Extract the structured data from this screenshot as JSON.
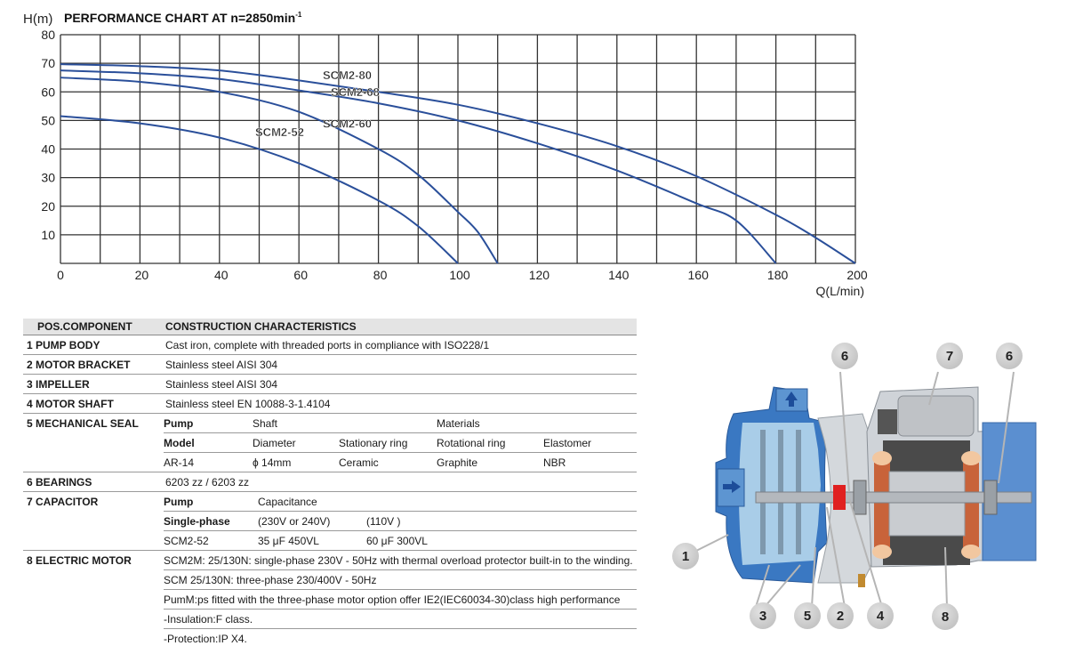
{
  "chart_data": {
    "type": "line",
    "title": "PERFORMANCE CHART AT n=2850min",
    "title_superscript": "-1",
    "xlabel": "Q(L/min)",
    "ylabel": "H(m)",
    "xlim": [
      0,
      200
    ],
    "ylim": [
      0,
      80
    ],
    "x_ticks": [
      0,
      20,
      40,
      60,
      80,
      100,
      120,
      140,
      160,
      180,
      200
    ],
    "y_ticks": [
      10,
      20,
      30,
      40,
      50,
      60,
      70,
      80
    ],
    "grid": {
      "x_step": 10,
      "y_step": 10,
      "on": true
    },
    "line_color": "#2a4f9a",
    "series": [
      {
        "name": "SCM2-80",
        "x": [
          0,
          20,
          40,
          60,
          80,
          100,
          120,
          140,
          160,
          180,
          190,
          200
        ],
        "y": [
          69.7,
          69,
          67.5,
          64,
          60,
          55.5,
          49,
          41,
          30.5,
          17,
          9,
          0
        ],
        "label_pos": [
          66,
          64.5
        ]
      },
      {
        "name": "SCM2-68",
        "x": [
          0,
          20,
          40,
          60,
          80,
          100,
          120,
          140,
          160,
          170,
          180
        ],
        "y": [
          67.5,
          66.5,
          64.5,
          60.5,
          56,
          50,
          42,
          32.5,
          21,
          15,
          0
        ],
        "label_pos": [
          68,
          58.5
        ]
      },
      {
        "name": "SCM2-60",
        "x": [
          0,
          20,
          40,
          60,
          80,
          90,
          100,
          105,
          110
        ],
        "y": [
          65,
          63.5,
          60,
          53,
          40,
          31,
          18,
          11,
          0
        ],
        "label_pos": [
          66,
          47.5
        ]
      },
      {
        "name": "SCM2-52",
        "x": [
          0,
          20,
          40,
          60,
          80,
          90,
          100
        ],
        "y": [
          51.5,
          49,
          44,
          35,
          22,
          13,
          0
        ],
        "label_pos": [
          49,
          44.5
        ]
      }
    ]
  },
  "table": {
    "headers": {
      "component": "POS.COMPONENT",
      "characteristics": "CONSTRUCTION CHARACTERISTICS"
    },
    "rows": {
      "pump_body": {
        "label": "1  PUMP BODY",
        "value": "Cast iron, complete with threaded ports in compliance with ISO228/1"
      },
      "motor_bracket": {
        "label": "2  MOTOR BRACKET",
        "value": "Stainless steel  AISI 304"
      },
      "impeller": {
        "label": "3  IMPELLER",
        "value": "Stainless steel AISI 304"
      },
      "motor_shaft": {
        "label": "4  MOTOR SHAFT",
        "value": "Stainless steel EN 10088-3-1.4104"
      },
      "mechanical_seal": {
        "label": "5  MECHANICAL SEAL",
        "r1": [
          "Pump",
          "Shaft",
          "",
          "Materials",
          ""
        ],
        "r2": [
          "Model",
          "Diameter",
          "Stationary ring",
          "Rotational ring",
          "Elastomer"
        ],
        "r3": [
          "AR-14",
          "ϕ 14mm",
          "Ceramic",
          "Graphite",
          "NBR"
        ]
      },
      "bearings": {
        "label": "6  BEARINGS",
        "value": "6203 zz / 6203 zz"
      },
      "capacitor": {
        "label": "7  CAPACITOR",
        "r1": [
          "Pump",
          "Capacitance",
          ""
        ],
        "r2": [
          "Single-phase",
          "(230V or 240V)",
          "(110V )"
        ],
        "r3": [
          "SCM2-52",
          "35 μF 450VL",
          "60 μF 300VL"
        ]
      },
      "electric_motor": {
        "label": "8  ELECTRIC MOTOR",
        "lines": [
          "SCM2M: 25/130N: single-phase 230V - 50Hz with thermal overload protector built-in to the winding.",
          "SCM 25/130N: three-phase 230/400V - 50Hz",
          "PumM:ps fitted with the three-phase motor option offer IE2(IEC60034-30)class high performance",
          "-Insulation:F class.",
          "-Protection:IP X4."
        ]
      }
    }
  },
  "diagram": {
    "callouts": [
      "1",
      "2",
      "3",
      "4",
      "5",
      "6",
      "6",
      "7",
      "8"
    ],
    "colors": {
      "pump_body": "#3a78c2",
      "pump_inner": "#a9cde8",
      "motor_body": "#cfd3d8",
      "stator": "#4a4a4a",
      "winding": "#c8633a",
      "seal": "#e02020"
    }
  }
}
